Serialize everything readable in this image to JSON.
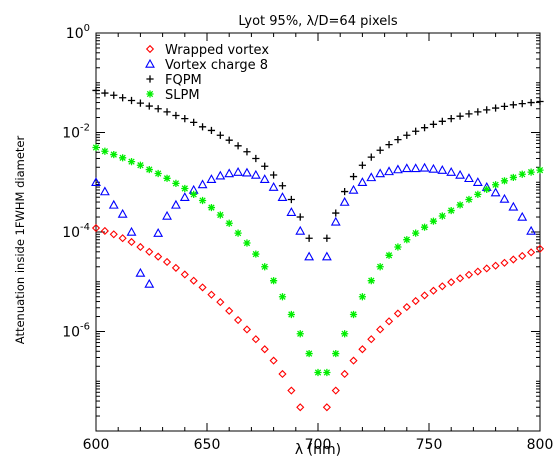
{
  "chart_data": {
    "type": "scatter",
    "title": "Lyot 95%, λ/D=64 pixels",
    "xlabel": "λ (nm)",
    "ylabel": "Attenuation inside 1FWHM diameter",
    "xlim": [
      600,
      800
    ],
    "ylim": [
      1e-08,
      1
    ],
    "yscale": "log",
    "x_ticks": [
      600,
      650,
      700,
      750,
      800
    ],
    "x_tick_labels": [
      "600",
      "650",
      "700",
      "750",
      "800"
    ],
    "y_ticks": [
      1,
      0.01,
      0.0001,
      1e-06
    ],
    "y_tick_labels": [
      {
        "base": "10",
        "exp": "0"
      },
      {
        "base": "10",
        "exp": "-2"
      },
      {
        "base": "10",
        "exp": "-4"
      },
      {
        "base": "10",
        "exp": "-6"
      }
    ],
    "legend_position": "top-left",
    "series": [
      {
        "name": "Wrapped vortex",
        "marker": "diamond",
        "color": "#ff0000",
        "points": [
          [
            600,
            0.00012
          ],
          [
            604,
            0.000105
          ],
          [
            608,
            9e-05
          ],
          [
            612,
            7.5e-05
          ],
          [
            616,
            6.3e-05
          ],
          [
            620,
            5e-05
          ],
          [
            624,
            4e-05
          ],
          [
            628,
            3.2e-05
          ],
          [
            632,
            2.5e-05
          ],
          [
            636,
            1.9e-05
          ],
          [
            640,
            1.4e-05
          ],
          [
            644,
            1.05e-05
          ],
          [
            648,
            7.7e-06
          ],
          [
            652,
            5.5e-06
          ],
          [
            656,
            3.9e-06
          ],
          [
            660,
            2.6e-06
          ],
          [
            664,
            1.7e-06
          ],
          [
            668,
            1.1e-06
          ],
          [
            672,
            7e-07
          ],
          [
            676,
            4.4e-07
          ],
          [
            680,
            2.6e-07
          ],
          [
            684,
            1.4e-07
          ],
          [
            688,
            6.5e-08
          ],
          [
            692,
            3e-08
          ],
          [
            704,
            3e-08
          ],
          [
            708,
            6.5e-08
          ],
          [
            712,
            1.4e-07
          ],
          [
            716,
            2.6e-07
          ],
          [
            720,
            4.4e-07
          ],
          [
            724,
            7e-07
          ],
          [
            728,
            1.1e-06
          ],
          [
            732,
            1.6e-06
          ],
          [
            736,
            2.3e-06
          ],
          [
            740,
            3.1e-06
          ],
          [
            744,
            4.1e-06
          ],
          [
            748,
            5.3e-06
          ],
          [
            752,
            6.6e-06
          ],
          [
            756,
            8.1e-06
          ],
          [
            760,
            9.8e-06
          ],
          [
            764,
            1.17e-05
          ],
          [
            768,
            1.38e-05
          ],
          [
            772,
            1.6e-05
          ],
          [
            776,
            1.85e-05
          ],
          [
            780,
            2.1e-05
          ],
          [
            784,
            2.4e-05
          ],
          [
            788,
            2.8e-05
          ],
          [
            792,
            3.3e-05
          ],
          [
            796,
            3.9e-05
          ],
          [
            800,
            4.6e-05
          ]
        ]
      },
      {
        "name": "Vortex charge 8",
        "marker": "triangle",
        "color": "#0000ff",
        "points": [
          [
            600,
            0.001
          ],
          [
            604,
            0.00065
          ],
          [
            608,
            0.00035
          ],
          [
            612,
            0.00023
          ],
          [
            616,
            0.0001
          ],
          [
            620,
            1.5e-05
          ],
          [
            624,
            9e-06
          ],
          [
            628,
            9.5e-05
          ],
          [
            632,
            0.00021
          ],
          [
            636,
            0.00035
          ],
          [
            640,
            0.0005
          ],
          [
            644,
            0.0007
          ],
          [
            648,
            0.0009
          ],
          [
            652,
            0.00115
          ],
          [
            656,
            0.00135
          ],
          [
            660,
            0.0015
          ],
          [
            664,
            0.0016
          ],
          [
            668,
            0.00155
          ],
          [
            672,
            0.0014
          ],
          [
            676,
            0.00115
          ],
          [
            680,
            0.0008
          ],
          [
            684,
            0.0005
          ],
          [
            688,
            0.00025
          ],
          [
            692,
            0.000105
          ],
          [
            696,
            3.2e-05
          ],
          [
            704,
            3.2e-05
          ],
          [
            708,
            0.00016
          ],
          [
            712,
            0.0004
          ],
          [
            716,
            0.0007
          ],
          [
            720,
            0.001
          ],
          [
            724,
            0.00125
          ],
          [
            728,
            0.0015
          ],
          [
            732,
            0.00165
          ],
          [
            736,
            0.0018
          ],
          [
            740,
            0.0019
          ],
          [
            744,
            0.0019
          ],
          [
            748,
            0.00195
          ],
          [
            752,
            0.00185
          ],
          [
            756,
            0.00175
          ],
          [
            760,
            0.0016
          ],
          [
            764,
            0.0014
          ],
          [
            768,
            0.0012
          ],
          [
            772,
            0.001
          ],
          [
            776,
            0.0008
          ],
          [
            780,
            0.00062
          ],
          [
            784,
            0.00046
          ],
          [
            788,
            0.00032
          ],
          [
            792,
            0.0002
          ],
          [
            796,
            0.000105
          ]
        ]
      },
      {
        "name": "FQPM",
        "marker": "plus",
        "color": "#000000",
        "points": [
          [
            600,
            0.07
          ],
          [
            604,
            0.062
          ],
          [
            608,
            0.056
          ],
          [
            612,
            0.05
          ],
          [
            616,
            0.044
          ],
          [
            620,
            0.039
          ],
          [
            624,
            0.034
          ],
          [
            628,
            0.03
          ],
          [
            632,
            0.026
          ],
          [
            636,
            0.022
          ],
          [
            640,
            0.019
          ],
          [
            644,
            0.016
          ],
          [
            648,
            0.013
          ],
          [
            652,
            0.011
          ],
          [
            656,
            0.0088
          ],
          [
            660,
            0.007
          ],
          [
            664,
            0.0054
          ],
          [
            668,
            0.0041
          ],
          [
            672,
            0.003
          ],
          [
            676,
            0.0021
          ],
          [
            680,
            0.0014
          ],
          [
            684,
            0.00085
          ],
          [
            688,
            0.00045
          ],
          [
            692,
            0.0002
          ],
          [
            696,
            7.5e-05
          ],
          [
            704,
            7.5e-05
          ],
          [
            708,
            0.00024
          ],
          [
            712,
            0.00065
          ],
          [
            716,
            0.0013
          ],
          [
            720,
            0.0022
          ],
          [
            724,
            0.0032
          ],
          [
            728,
            0.0044
          ],
          [
            732,
            0.0057
          ],
          [
            736,
            0.0072
          ],
          [
            740,
            0.0088
          ],
          [
            744,
            0.0106
          ],
          [
            748,
            0.0125
          ],
          [
            752,
            0.0146
          ],
          [
            756,
            0.0168
          ],
          [
            760,
            0.019
          ],
          [
            764,
            0.0213
          ],
          [
            768,
            0.0237
          ],
          [
            772,
            0.026
          ],
          [
            776,
            0.0285
          ],
          [
            780,
            0.031
          ],
          [
            784,
            0.0335
          ],
          [
            788,
            0.036
          ],
          [
            792,
            0.038
          ],
          [
            796,
            0.04
          ],
          [
            800,
            0.042
          ]
        ]
      },
      {
        "name": "SLPM",
        "marker": "asterisk",
        "color": "#00ee00",
        "points": [
          [
            600,
            0.005
          ],
          [
            604,
            0.0042
          ],
          [
            608,
            0.0036
          ],
          [
            612,
            0.0031
          ],
          [
            616,
            0.0026
          ],
          [
            620,
            0.0022
          ],
          [
            624,
            0.0018
          ],
          [
            628,
            0.0015
          ],
          [
            632,
            0.0012
          ],
          [
            636,
            0.00095
          ],
          [
            640,
            0.00075
          ],
          [
            644,
            0.00057
          ],
          [
            648,
            0.00043
          ],
          [
            652,
            0.00031
          ],
          [
            656,
            0.00022
          ],
          [
            660,
            0.00015
          ],
          [
            664,
            9.5e-05
          ],
          [
            668,
            6e-05
          ],
          [
            672,
            3.6e-05
          ],
          [
            676,
            2e-05
          ],
          [
            680,
            1.05e-05
          ],
          [
            684,
            5e-06
          ],
          [
            688,
            2.2e-06
          ],
          [
            692,
            9e-07
          ],
          [
            696,
            3.6e-07
          ],
          [
            700,
            1.5e-07
          ],
          [
            704,
            1.5e-07
          ],
          [
            708,
            3.6e-07
          ],
          [
            712,
            9e-07
          ],
          [
            716,
            2.2e-06
          ],
          [
            720,
            5e-06
          ],
          [
            724,
            1.05e-05
          ],
          [
            728,
            2e-05
          ],
          [
            732,
            3.4e-05
          ],
          [
            736,
            5e-05
          ],
          [
            740,
            7e-05
          ],
          [
            744,
            9.5e-05
          ],
          [
            748,
            0.000125
          ],
          [
            752,
            0.000165
          ],
          [
            756,
            0.00021
          ],
          [
            760,
            0.00027
          ],
          [
            764,
            0.00035
          ],
          [
            768,
            0.00045
          ],
          [
            772,
            0.00057
          ],
          [
            776,
            0.00072
          ],
          [
            780,
            0.00089
          ],
          [
            784,
            0.00107
          ],
          [
            788,
            0.00125
          ],
          [
            792,
            0.00145
          ],
          [
            796,
            0.0016
          ],
          [
            800,
            0.00175
          ]
        ]
      }
    ]
  }
}
